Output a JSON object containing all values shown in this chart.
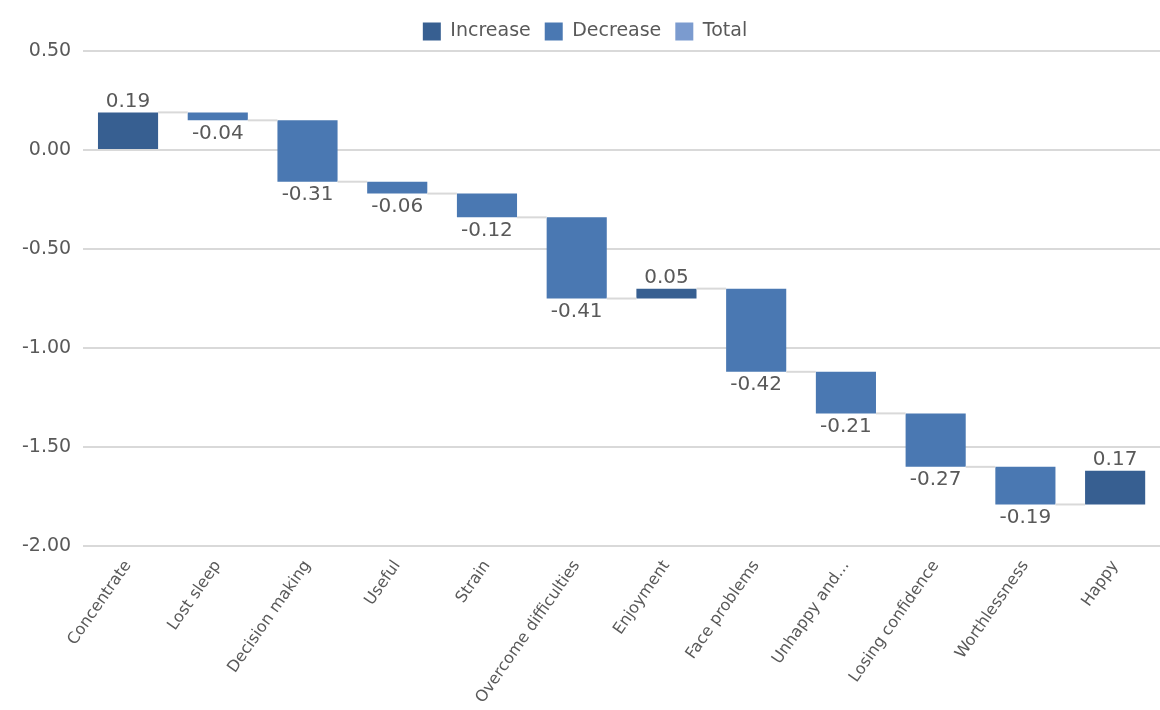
{
  "chart_data": {
    "type": "bar",
    "categories": [
      "Concentrate",
      "Lost sleep",
      "Decision making",
      "Useful",
      "Strain",
      "Overcome difficulties",
      "Enjoyment",
      "Face problems",
      "Unhappy and...",
      "Losing confidence",
      "Worthlessness",
      "Happy"
    ],
    "series": [
      {
        "name": "Increase",
        "color": "#375f91",
        "values": [
          0.19,
          null,
          null,
          null,
          null,
          null,
          0.05,
          null,
          null,
          null,
          null,
          0.17
        ],
        "base": [
          0,
          null,
          null,
          null,
          null,
          null,
          -0.75,
          null,
          null,
          null,
          null,
          -1.79
        ]
      },
      {
        "name": "Decrease",
        "color": "#4a78b2",
        "values": [
          null,
          -0.04,
          -0.31,
          -0.06,
          -0.12,
          -0.41,
          null,
          -0.42,
          -0.21,
          -0.27,
          -0.19,
          null
        ],
        "base": [
          null,
          0.19,
          0.15,
          -0.16,
          -0.22,
          -0.34,
          null,
          -0.7,
          -1.12,
          -1.33,
          -1.6,
          null
        ]
      },
      {
        "name": "Total",
        "color": "#7b9bcf",
        "values": [
          null,
          null,
          null,
          null,
          null,
          null,
          null,
          null,
          null,
          null,
          null,
          null
        ]
      }
    ],
    "ylim": [
      -2,
      0.5
    ],
    "yticks": [
      {
        "value": -2,
        "label": "-2.00"
      },
      {
        "value": -1.5,
        "label": "-1.50"
      },
      {
        "value": -1,
        "label": "-1.00"
      },
      {
        "value": -0.5,
        "label": "-0.50"
      },
      {
        "value": 0,
        "label": "0.00"
      },
      {
        "value": 0.5,
        "label": "0.50"
      }
    ],
    "grid": "y",
    "legend": "top",
    "data_labels": true
  }
}
